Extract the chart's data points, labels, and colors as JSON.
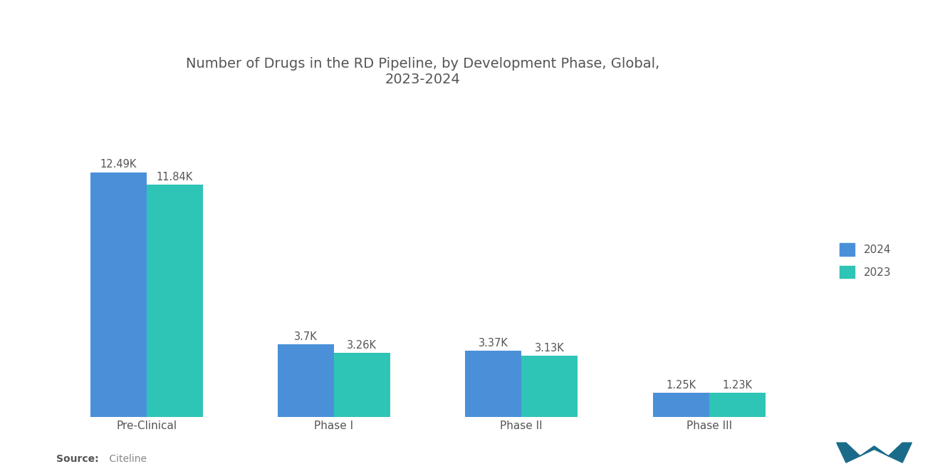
{
  "title": "Number of Drugs in the RD Pipeline, by Development Phase, Global,\n2023-2024",
  "categories": [
    "Pre-Clinical",
    "Phase I",
    "Phase II",
    "Phase III"
  ],
  "values_2024": [
    12.49,
    3.7,
    3.37,
    1.25
  ],
  "values_2023": [
    11.84,
    3.26,
    3.13,
    1.23
  ],
  "labels_2024": [
    "12.49K",
    "3.7K",
    "3.37K",
    "1.25K"
  ],
  "labels_2023": [
    "11.84K",
    "3.26K",
    "3.13K",
    "1.23K"
  ],
  "color_2024": "#4A90D9",
  "color_2023": "#2EC4B6",
  "background_color": "#ffffff",
  "title_fontsize": 14,
  "label_fontsize": 10.5,
  "tick_fontsize": 11,
  "legend_labels": [
    "2024",
    "2023"
  ],
  "bar_width": 0.3,
  "ylim": [
    0,
    14.5
  ]
}
